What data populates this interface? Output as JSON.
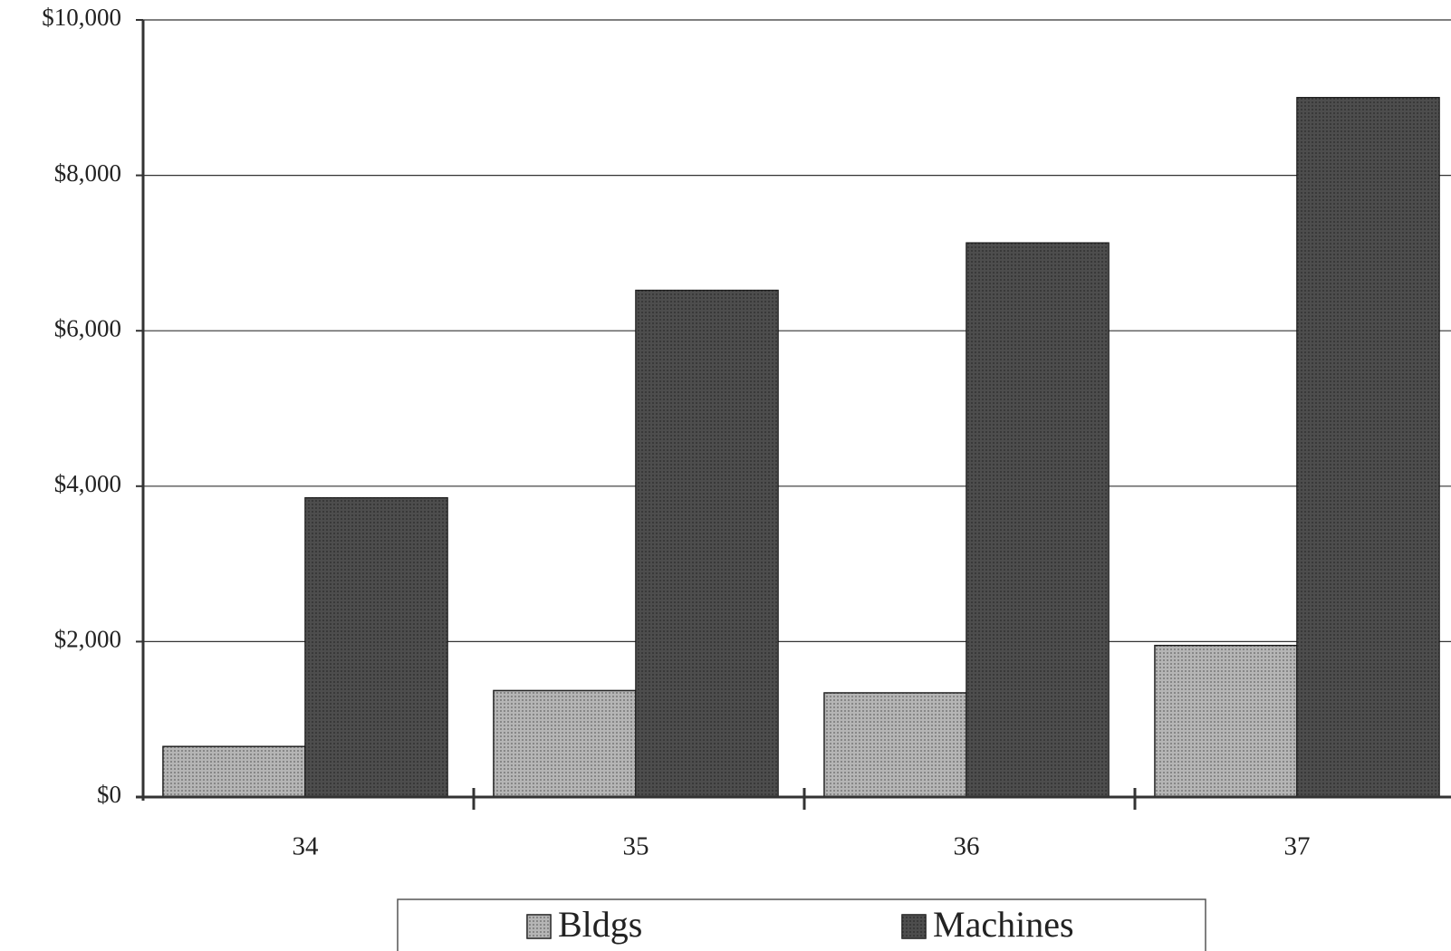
{
  "chart_data": {
    "type": "bar",
    "categories": [
      "34",
      "35",
      "36",
      "37"
    ],
    "series": [
      {
        "name": "Bldgs",
        "color": "#a8a8a8",
        "values": [
          650,
          1370,
          1340,
          1950
        ]
      },
      {
        "name": "Machines",
        "color": "#2e2e2e",
        "values": [
          3850,
          6520,
          7130,
          9000
        ]
      }
    ],
    "ylim": [
      0,
      10000
    ],
    "yticks": [
      {
        "value": 0,
        "label": "$0"
      },
      {
        "value": 2000,
        "label": "$2,000"
      },
      {
        "value": 4000,
        "label": "$4,000"
      },
      {
        "value": 6000,
        "label": "$6,000"
      },
      {
        "value": 8000,
        "label": "$8,000"
      },
      {
        "value": 10000,
        "label": "$10,000"
      }
    ],
    "grid": true
  }
}
